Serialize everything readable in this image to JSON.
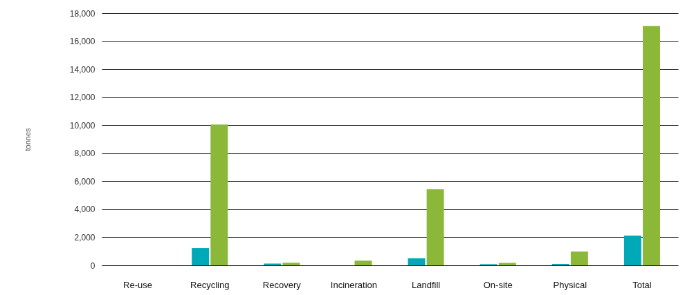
{
  "chart_data": {
    "type": "bar",
    "ylabel": "tonnes",
    "categories": [
      "Re-use",
      "Recycling",
      "Recovery",
      "Incineration",
      "Landfill",
      "On-site",
      "Physical",
      "Total"
    ],
    "series": [
      {
        "color": "#00a9b7",
        "values": [
          null,
          1230,
          120,
          null,
          500,
          80,
          100,
          2120
        ]
      },
      {
        "color": "#8cb83a",
        "values": [
          null,
          10050,
          180,
          330,
          5420,
          170,
          980,
          17070
        ]
      }
    ],
    "ylim": [
      0,
      18000
    ],
    "yticks": [
      0,
      {
        "value": 2000,
        "label": "2,000"
      },
      {
        "value": 4000,
        "label": "4,000"
      },
      {
        "value": 6000,
        "label": "6,000"
      },
      {
        "value": 8000,
        "label": "8,000"
      },
      {
        "value": 10000,
        "label": "10,000"
      },
      {
        "value": 12000,
        "label": "12,000"
      },
      {
        "value": 14000,
        "label": "14,000"
      },
      {
        "value": 16000,
        "label": "16,000"
      },
      {
        "value": 18000,
        "label": "18,000"
      }
    ],
    "grid": "y",
    "legend": false
  }
}
